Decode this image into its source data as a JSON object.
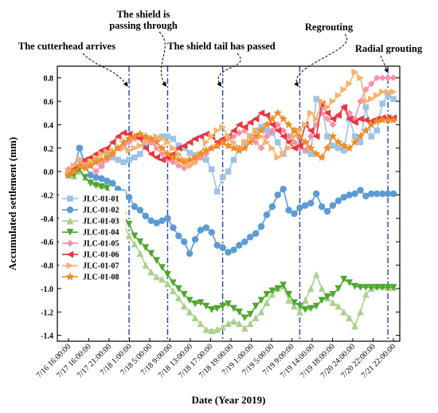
{
  "chart_data": {
    "type": "line",
    "xlabel": "Date (Year 2019)",
    "ylabel": "Accumulated settlement (mm)",
    "ylim": [
      -1.45,
      0.9
    ],
    "yticks": [
      0.8,
      0.6,
      0.4,
      0.2,
      0.0,
      -0.2,
      -0.4,
      -0.6,
      -0.8,
      -1.0,
      -1.2,
      -1.4
    ],
    "xticks": [
      "7/16 16:00:00",
      "7/17 16:00:00",
      "7/17 21:00:00",
      "7/18 1:00:00",
      "7/18 5:00:00",
      "7/18 9:00:00",
      "7/18 13:00:00",
      "7/18 17:00:00",
      "7/18 19:00:00",
      "7/19 1:00:00",
      "7/19 5:00:00",
      "7/19 9:00:00",
      "7/19 14:00:00",
      "7/19 18:00:00",
      "7/20 24:00:00",
      "7/20 22:00:00",
      "7/21 22:00:00"
    ],
    "grid": false,
    "legend_position": "lower-left",
    "annotations": [
      {
        "text": "The cutterhead arrives",
        "x_index": 11
      },
      {
        "text": "The shield is passing through",
        "x_index": 18
      },
      {
        "text": "The shield tail has passed",
        "x_index": 28
      },
      {
        "text": "Regrouting",
        "x_index": 42
      },
      {
        "text": "Radial grouting",
        "x_index": 58
      }
    ],
    "series": [
      {
        "name": "JLC-01-01",
        "color": "#9dc3e6",
        "marker": "square",
        "values": [
          0.0,
          0.03,
          0.2,
          0.08,
          0.07,
          0.1,
          0.05,
          0.14,
          0.12,
          0.1,
          0.08,
          0.1,
          0.12,
          0.15,
          0.22,
          0.25,
          0.28,
          0.3,
          0.3,
          0.28,
          0.22,
          0.2,
          0.16,
          0.14,
          0.12,
          0.1,
          0.02,
          -0.17,
          -0.05,
          0.0,
          0.1,
          0.2,
          0.25,
          0.3,
          0.35,
          0.38,
          0.35,
          0.33,
          0.25,
          0.15,
          0.3,
          0.35,
          0.22,
          0.18,
          0.15,
          0.62,
          0.55,
          0.3,
          0.22,
          0.2,
          0.18,
          0.45,
          0.3,
          0.25,
          0.55,
          0.3,
          0.35,
          0.58,
          0.65,
          0.62
        ]
      },
      {
        "name": "JLC-01-02",
        "color": "#5b9bd5",
        "marker": "circle",
        "values": [
          -0.03,
          0.02,
          0.2,
          0.05,
          -0.03,
          -0.05,
          -0.06,
          -0.08,
          -0.1,
          -0.15,
          -0.18,
          -0.22,
          -0.3,
          -0.33,
          -0.38,
          -0.42,
          -0.44,
          -0.42,
          -0.4,
          -0.48,
          -0.55,
          -0.6,
          -0.7,
          -0.58,
          -0.5,
          -0.48,
          -0.52,
          -0.63,
          -0.65,
          -0.69,
          -0.67,
          -0.63,
          -0.6,
          -0.56,
          -0.53,
          -0.47,
          -0.37,
          -0.3,
          -0.2,
          -0.15,
          -0.33,
          -0.36,
          -0.31,
          -0.29,
          -0.27,
          -0.19,
          -0.3,
          -0.34,
          -0.29,
          -0.25,
          -0.22,
          -0.2,
          -0.19,
          -0.16,
          -0.21,
          -0.19,
          -0.19,
          -0.19,
          -0.19,
          -0.19
        ]
      },
      {
        "name": "JLC-01-03",
        "color": "#a9d18e",
        "marker": "triangle-up",
        "values": [
          -0.03,
          -0.04,
          0.0,
          -0.05,
          -0.08,
          -0.1,
          -0.12,
          -0.15,
          -0.22,
          -0.33,
          -0.44,
          -0.55,
          -0.62,
          -0.7,
          -0.8,
          -0.86,
          -0.9,
          -0.92,
          -0.96,
          -1.02,
          -1.08,
          -1.15,
          -1.2,
          -1.25,
          -1.3,
          -1.35,
          -1.36,
          -1.35,
          -1.33,
          -1.3,
          -1.28,
          -1.3,
          -1.34,
          -1.3,
          -1.25,
          -1.2,
          -1.12,
          -1.05,
          -1.0,
          -0.98,
          -1.1,
          -1.15,
          -1.2,
          -1.1,
          -1.0,
          -0.88,
          -1.0,
          -1.08,
          -1.12,
          -1.15,
          -1.2,
          -1.25,
          -1.32,
          -1.2,
          -1.05,
          -1.0,
          -0.98,
          -0.98,
          -0.99,
          -0.99
        ]
      },
      {
        "name": "JLC-01-04",
        "color": "#4ea72e",
        "marker": "triangle-down",
        "values": [
          -0.03,
          -0.03,
          0.02,
          -0.05,
          -0.1,
          -0.12,
          -0.13,
          -0.14,
          -0.2,
          -0.3,
          -0.38,
          -0.45,
          -0.55,
          -0.6,
          -0.65,
          -0.7,
          -0.76,
          -0.82,
          -0.88,
          -0.95,
          -1.0,
          -1.05,
          -1.1,
          -1.13,
          -1.12,
          -1.15,
          -1.18,
          -1.17,
          -1.15,
          -1.13,
          -1.17,
          -1.2,
          -1.25,
          -1.22,
          -1.15,
          -1.1,
          -1.05,
          -1.02,
          -1.0,
          -0.97,
          -1.05,
          -1.12,
          -1.15,
          -1.18,
          -1.17,
          -1.15,
          -1.1,
          -1.07,
          -1.05,
          -1.0,
          -0.92,
          -0.95,
          -0.98,
          -0.99,
          -0.99,
          -0.99,
          -0.99,
          -0.99,
          -0.99,
          -0.99
        ]
      },
      {
        "name": "JLC-01-05",
        "color": "#ff8fa8",
        "marker": "diamond",
        "values": [
          0.02,
          0.05,
          0.1,
          0.08,
          0.05,
          0.0,
          0.05,
          0.1,
          0.15,
          0.2,
          0.22,
          0.25,
          0.28,
          0.3,
          0.28,
          0.25,
          0.2,
          0.15,
          0.1,
          0.08,
          0.05,
          0.03,
          0.05,
          0.08,
          0.12,
          0.15,
          0.2,
          0.22,
          0.25,
          0.28,
          0.3,
          0.33,
          0.35,
          0.3,
          0.25,
          0.2,
          0.3,
          0.35,
          0.4,
          0.35,
          0.3,
          0.25,
          0.2,
          0.18,
          0.3,
          0.4,
          0.5,
          0.45,
          0.4,
          0.48,
          0.55,
          0.5,
          0.45,
          0.6,
          0.7,
          0.75,
          0.8,
          0.8,
          0.8,
          0.8
        ]
      },
      {
        "name": "JLC-01-06",
        "color": "#e8363f",
        "marker": "triangle-left",
        "values": [
          0.0,
          0.02,
          0.05,
          0.1,
          0.12,
          0.15,
          0.18,
          0.2,
          0.25,
          0.3,
          0.33,
          0.32,
          0.3,
          0.28,
          0.2,
          0.15,
          0.12,
          0.1,
          0.12,
          0.15,
          0.2,
          0.22,
          0.25,
          0.28,
          0.3,
          0.32,
          0.3,
          0.25,
          0.28,
          0.3,
          0.35,
          0.4,
          0.38,
          0.42,
          0.45,
          0.5,
          0.48,
          0.4,
          0.35,
          0.3,
          0.25,
          0.2,
          0.22,
          0.4,
          0.35,
          0.3,
          0.58,
          0.5,
          0.45,
          0.48,
          0.55,
          0.45,
          0.42,
          0.45,
          0.44,
          0.43,
          0.45,
          0.46,
          0.46,
          0.46
        ]
      },
      {
        "name": "JLC-01-07",
        "color": "#f8b26a",
        "marker": "triangle-right",
        "values": [
          0.0,
          0.05,
          0.1,
          0.05,
          0.08,
          0.12,
          0.15,
          0.17,
          0.18,
          0.2,
          0.2,
          0.18,
          0.2,
          0.22,
          0.25,
          0.28,
          0.3,
          0.28,
          0.25,
          0.2,
          0.15,
          0.1,
          0.05,
          0.08,
          0.15,
          0.25,
          0.3,
          0.35,
          0.38,
          0.3,
          0.25,
          0.2,
          0.25,
          0.3,
          0.35,
          0.3,
          0.25,
          0.2,
          0.12,
          0.15,
          0.2,
          0.3,
          0.35,
          0.4,
          0.5,
          0.45,
          0.6,
          0.55,
          0.6,
          0.65,
          0.7,
          0.75,
          0.85,
          0.8,
          0.6,
          0.62,
          0.65,
          0.68,
          0.68,
          0.68
        ]
      },
      {
        "name": "JLC-01-08",
        "color": "#f08c24",
        "marker": "star",
        "values": [
          -0.03,
          0.0,
          0.05,
          0.03,
          0.05,
          0.08,
          0.1,
          0.12,
          0.15,
          0.2,
          0.25,
          0.28,
          0.3,
          0.32,
          0.3,
          0.28,
          0.25,
          0.2,
          0.15,
          0.12,
          0.1,
          0.08,
          0.1,
          0.12,
          0.15,
          0.18,
          0.2,
          0.22,
          0.25,
          0.22,
          0.2,
          0.18,
          0.2,
          0.25,
          0.3,
          0.35,
          0.4,
          0.45,
          0.5,
          0.45,
          0.4,
          0.35,
          0.3,
          0.25,
          0.2,
          0.15,
          0.12,
          0.2,
          0.3,
          0.25,
          0.22,
          0.2,
          0.25,
          0.3,
          0.35,
          0.4,
          0.43,
          0.44,
          0.44,
          0.44
        ]
      }
    ]
  }
}
